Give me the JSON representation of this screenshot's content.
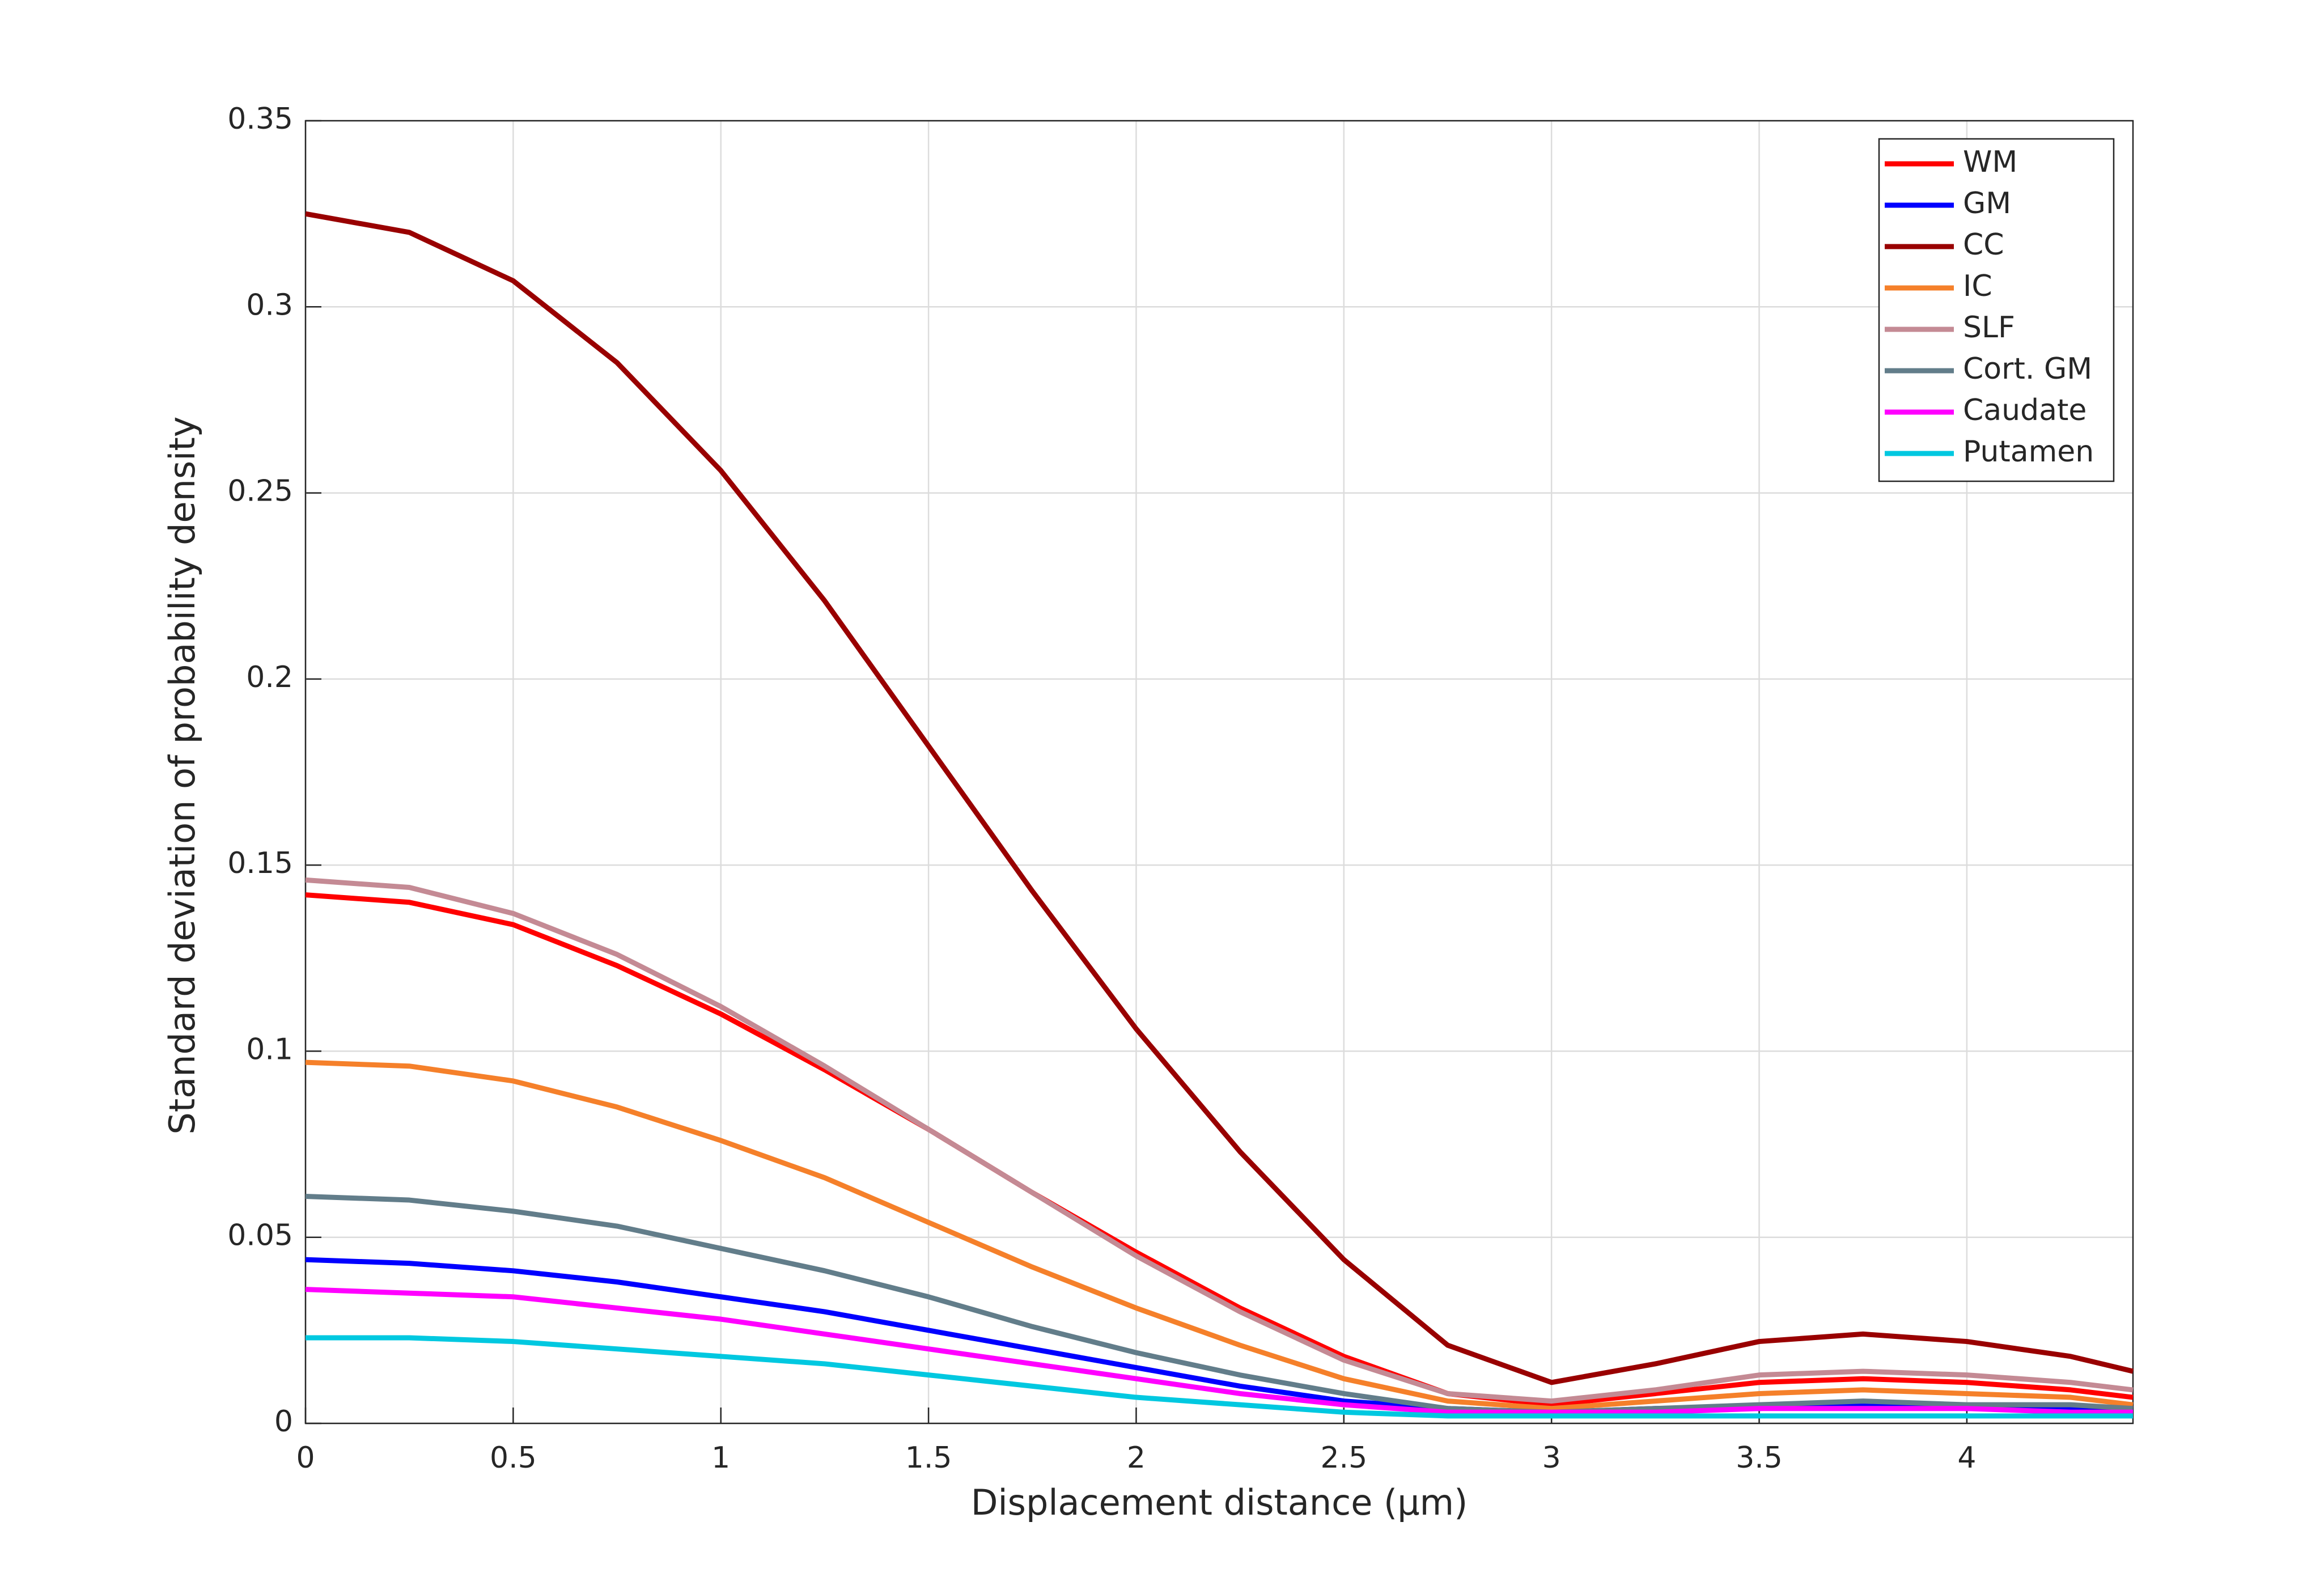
{
  "chart_data": {
    "type": "line",
    "xlabel": "Displacement distance (μm)",
    "ylabel": "Standard deviation of probability density",
    "x": [
      0,
      0.25,
      0.5,
      0.75,
      1,
      1.25,
      1.5,
      1.75,
      2,
      2.25,
      2.5,
      2.75,
      3,
      3.25,
      3.5,
      3.75,
      4,
      4.25,
      4.4
    ],
    "series": [
      {
        "name": "WM",
        "color": "#ff0000",
        "values": [
          0.142,
          0.14,
          0.134,
          0.123,
          0.11,
          0.095,
          0.079,
          0.062,
          0.046,
          0.031,
          0.018,
          0.008,
          0.005,
          0.008,
          0.011,
          0.012,
          0.011,
          0.009,
          0.007
        ]
      },
      {
        "name": "GM",
        "color": "#0000ff",
        "values": [
          0.044,
          0.043,
          0.041,
          0.038,
          0.034,
          0.03,
          0.025,
          0.02,
          0.015,
          0.01,
          0.006,
          0.004,
          0.003,
          0.004,
          0.004,
          0.005,
          0.004,
          0.004,
          0.003
        ]
      },
      {
        "name": "CC",
        "color": "#990000",
        "values": [
          0.325,
          0.32,
          0.307,
          0.285,
          0.256,
          0.221,
          0.182,
          0.143,
          0.106,
          0.073,
          0.044,
          0.021,
          0.011,
          0.016,
          0.022,
          0.024,
          0.022,
          0.018,
          0.014
        ]
      },
      {
        "name": "IC",
        "color": "#f5802a",
        "values": [
          0.097,
          0.096,
          0.092,
          0.085,
          0.076,
          0.066,
          0.054,
          0.042,
          0.031,
          0.021,
          0.012,
          0.006,
          0.004,
          0.006,
          0.008,
          0.009,
          0.008,
          0.007,
          0.005
        ]
      },
      {
        "name": "SLF",
        "color": "#c48a94",
        "values": [
          0.146,
          0.144,
          0.137,
          0.126,
          0.112,
          0.096,
          0.079,
          0.062,
          0.045,
          0.03,
          0.017,
          0.008,
          0.006,
          0.009,
          0.013,
          0.014,
          0.013,
          0.011,
          0.009
        ]
      },
      {
        "name": "Cort. GM",
        "color": "#627d8a",
        "values": [
          0.061,
          0.06,
          0.057,
          0.053,
          0.047,
          0.041,
          0.034,
          0.026,
          0.019,
          0.013,
          0.008,
          0.004,
          0.003,
          0.004,
          0.005,
          0.006,
          0.005,
          0.005,
          0.004
        ]
      },
      {
        "name": "Caudate",
        "color": "#ff00ff",
        "values": [
          0.036,
          0.035,
          0.034,
          0.031,
          0.028,
          0.024,
          0.02,
          0.016,
          0.012,
          0.008,
          0.005,
          0.003,
          0.003,
          0.003,
          0.004,
          0.004,
          0.004,
          0.003,
          0.003
        ]
      },
      {
        "name": "Putamen",
        "color": "#00c8e0",
        "values": [
          0.023,
          0.023,
          0.022,
          0.02,
          0.018,
          0.016,
          0.013,
          0.01,
          0.007,
          0.005,
          0.003,
          0.002,
          0.002,
          0.002,
          0.002,
          0.002,
          0.002,
          0.002,
          0.002
        ]
      }
    ],
    "xlim": [
      0,
      4.4
    ],
    "xticks": [
      0,
      0.5,
      1,
      1.5,
      2,
      2.5,
      3,
      3.5,
      4
    ],
    "ylim": [
      0,
      0.35
    ],
    "yticks": [
      0,
      0.05,
      0.1,
      0.15,
      0.2,
      0.25,
      0.3,
      0.35
    ],
    "grid": true,
    "legend": "northeast"
  }
}
